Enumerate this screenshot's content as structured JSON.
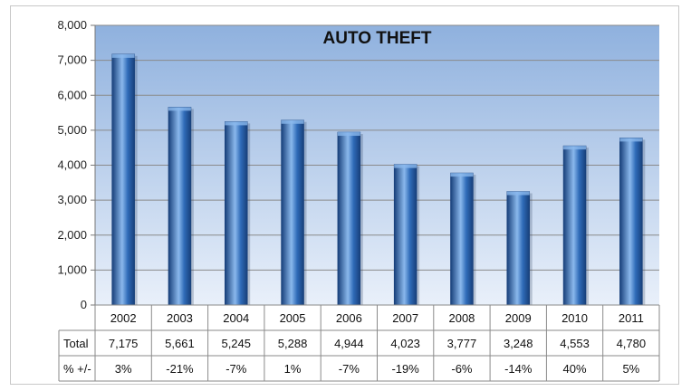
{
  "chart_data": {
    "type": "bar",
    "title": "AUTO THEFT",
    "categories": [
      "2002",
      "2003",
      "2004",
      "2005",
      "2006",
      "2007",
      "2008",
      "2009",
      "2010",
      "2011"
    ],
    "values": [
      7175,
      5661,
      5245,
      5288,
      4944,
      4023,
      3777,
      3248,
      4553,
      4780
    ],
    "ylim": [
      0,
      8000
    ],
    "yticks": [
      "0",
      "1,000",
      "2,000",
      "3,000",
      "4,000",
      "5,000",
      "6,000",
      "7,000",
      "8,000"
    ],
    "grid": true,
    "table": {
      "rows": [
        {
          "label": "Total",
          "cells": [
            "7,175",
            "5,661",
            "5,245",
            "5,288",
            "4,944",
            "4,023",
            "3,777",
            "3,248",
            "4,553",
            "4,780"
          ]
        },
        {
          "label": "% +/-",
          "cells": [
            "3%",
            "-21%",
            "-7%",
            "1%",
            "-7%",
            "-19%",
            "-6%",
            "-14%",
            "40%",
            "5%"
          ]
        }
      ]
    },
    "colors": {
      "bar": "#2f6bb8",
      "bar_dark": "#173f7a",
      "bar_light": "#8ab8ec",
      "plot_top": "#8fb1de",
      "plot_bottom": "#e9f0fa"
    }
  }
}
